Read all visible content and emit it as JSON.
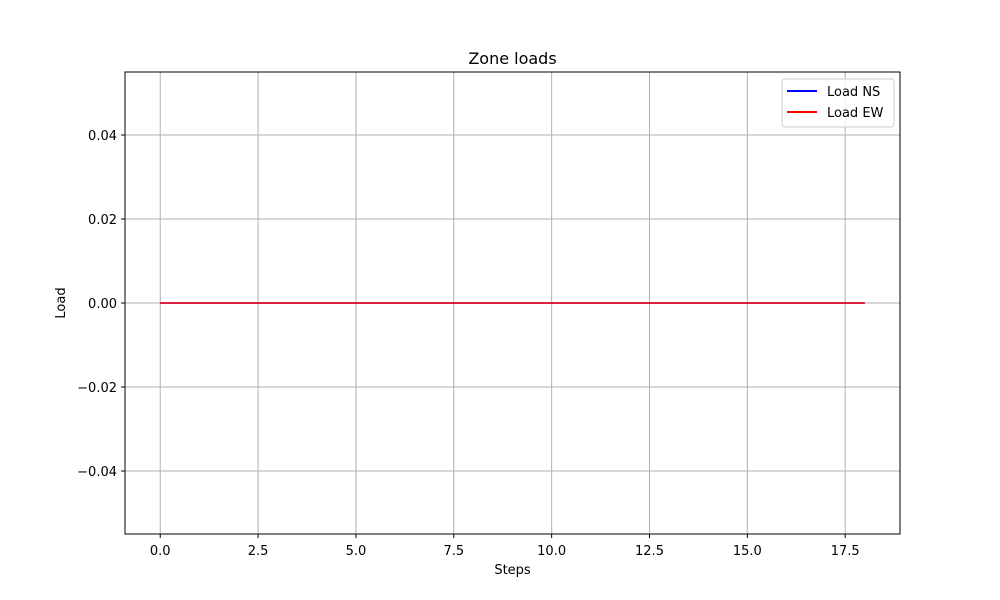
{
  "chart_data": {
    "type": "line",
    "title": "Zone loads",
    "xlabel": "Steps",
    "ylabel": "Load",
    "xlim": [
      -0.9,
      18.9
    ],
    "ylim": [
      -0.055,
      0.055
    ],
    "xticks": [
      0.0,
      2.5,
      5.0,
      7.5,
      10.0,
      12.5,
      15.0,
      17.5
    ],
    "xtick_labels": [
      "0.0",
      "2.5",
      "5.0",
      "7.5",
      "10.0",
      "12.5",
      "15.0",
      "17.5"
    ],
    "yticks": [
      -0.04,
      -0.02,
      0.0,
      0.02,
      0.04
    ],
    "ytick_labels": [
      "−0.04",
      "−0.02",
      "0.00",
      "0.02",
      "0.04"
    ],
    "grid": true,
    "legend_position": "top-right",
    "series": [
      {
        "name": "Load NS",
        "color": "#0000ff",
        "x": [
          0,
          1,
          2,
          3,
          4,
          5,
          6,
          7,
          8,
          9,
          10,
          11,
          12,
          13,
          14,
          15,
          16,
          17,
          18
        ],
        "y": [
          0,
          0,
          0,
          0,
          0,
          0,
          0,
          0,
          0,
          0,
          0,
          0,
          0,
          0,
          0,
          0,
          0,
          0,
          0
        ]
      },
      {
        "name": "Load EW",
        "color": "#ff0000",
        "x": [
          0,
          1,
          2,
          3,
          4,
          5,
          6,
          7,
          8,
          9,
          10,
          11,
          12,
          13,
          14,
          15,
          16,
          17,
          18
        ],
        "y": [
          0,
          0,
          0,
          0,
          0,
          0,
          0,
          0,
          0,
          0,
          0,
          0,
          0,
          0,
          0,
          0,
          0,
          0,
          0
        ]
      }
    ]
  }
}
